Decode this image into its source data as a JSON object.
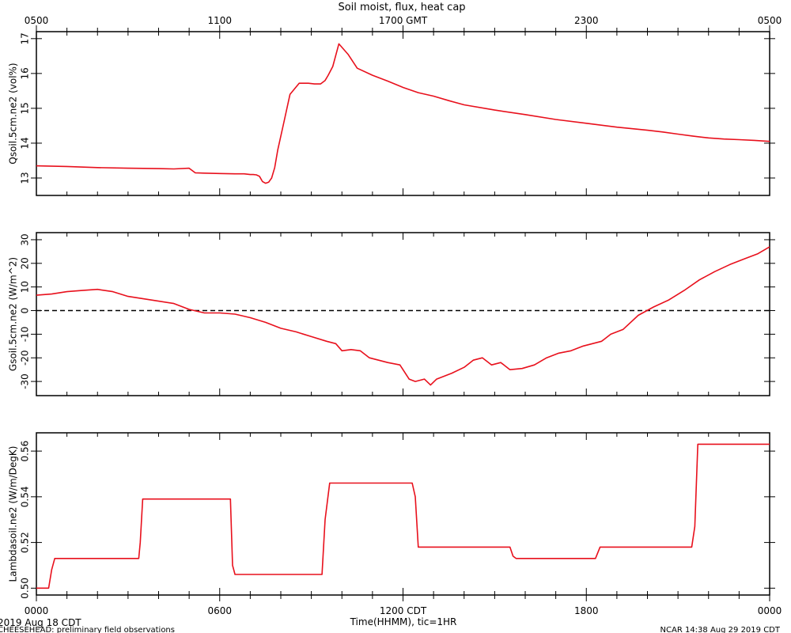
{
  "chart_data": [
    {
      "type": "line",
      "title": "Soil moist, flux, heat cap",
      "ylabel": "Qsoil.5cm.ne2 (vol%)",
      "ylim": [
        12.5,
        17.2
      ],
      "y_ticks": [
        "13",
        "14",
        "15",
        "16",
        "17"
      ],
      "top_x_ticks": [
        "0500",
        "1100",
        "1700 GMT",
        "2300",
        "0500"
      ],
      "series": [
        {
          "color": "#e8101c",
          "x": [
            0,
            1,
            2,
            3,
            4,
            4.5,
            5,
            5.2,
            5.5,
            6,
            6.5,
            6.8,
            7,
            7.1,
            7.2,
            7.3,
            7.4,
            7.5,
            7.6,
            7.7,
            7.8,
            7.9,
            8.1,
            8.3,
            8.6,
            8.9,
            9.1,
            9.3,
            9.45,
            9.55,
            9.7,
            9.9,
            10.2,
            10.5,
            11,
            11.5,
            12,
            12.5,
            13,
            13.5,
            14,
            15,
            16,
            17,
            18,
            19,
            20,
            20.5,
            21,
            21.5,
            22,
            22.5,
            23,
            23.5,
            24
          ],
          "y": [
            13.35,
            13.33,
            13.3,
            13.28,
            13.27,
            13.26,
            13.28,
            13.15,
            13.14,
            13.13,
            13.12,
            13.12,
            13.1,
            13.1,
            13.09,
            13.05,
            12.9,
            12.85,
            12.88,
            13.0,
            13.3,
            13.8,
            14.6,
            15.4,
            15.72,
            15.72,
            15.7,
            15.7,
            15.8,
            15.95,
            16.2,
            16.85,
            16.55,
            16.15,
            15.95,
            15.78,
            15.6,
            15.45,
            15.35,
            15.22,
            15.1,
            14.95,
            14.82,
            14.68,
            14.57,
            14.46,
            14.37,
            14.32,
            14.26,
            14.2,
            14.15,
            14.12,
            14.1,
            14.08,
            14.05
          ]
        }
      ]
    },
    {
      "type": "line",
      "ylabel": "Gsoil.5cm.ne2 (W/m^2)",
      "ylim": [
        -36,
        33
      ],
      "y_ticks": [
        "30",
        "20",
        "10",
        "0",
        "-10",
        "-20",
        "-30"
      ],
      "zero_line": true,
      "series": [
        {
          "color": "#e8101c",
          "x": [
            0,
            0.5,
            1,
            1.5,
            2,
            2.5,
            3,
            3.5,
            4,
            4.5,
            5,
            5.5,
            6,
            6.5,
            7,
            7.5,
            8,
            8.5,
            9,
            9.5,
            9.8,
            10,
            10.3,
            10.6,
            10.9,
            11.2,
            11.5,
            11.9,
            12.2,
            12.4,
            12.7,
            12.9,
            13.1,
            13.4,
            13.6,
            14,
            14.3,
            14.6,
            14.9,
            15.2,
            15.5,
            15.9,
            16.3,
            16.7,
            17.1,
            17.5,
            17.9,
            18.2,
            18.5,
            18.8,
            19.2,
            19.7,
            20.2,
            20.7,
            21.2,
            21.7,
            22.2,
            22.7,
            23.2,
            23.6,
            24
          ],
          "y": [
            6.5,
            7,
            8,
            8.5,
            9,
            8,
            6,
            5,
            4,
            3,
            0.5,
            -1,
            -1,
            -1.5,
            -3,
            -5,
            -7.5,
            -9,
            -11,
            -13,
            -14,
            -17,
            -16.5,
            -17,
            -20,
            -21,
            -22,
            -23,
            -29,
            -30,
            -29,
            -31.5,
            -29,
            -27.5,
            -26.5,
            -24,
            -21,
            -20,
            -23,
            -22,
            -25,
            -24.5,
            -23,
            -20,
            -18,
            -17,
            -15,
            -14,
            -13,
            -10,
            -8,
            -2,
            1.5,
            4.5,
            8.5,
            13,
            16.5,
            19.5,
            22,
            24,
            27
          ]
        }
      ]
    },
    {
      "type": "line",
      "ylabel": "Lambdasoil.ne2 (W/m/DegK)",
      "ylim": [
        0.497,
        0.568
      ],
      "y_ticks": [
        "0.50",
        "0.52",
        "0.54",
        "0.56"
      ],
      "xlabel": "Time(HHMM), tic=1HR",
      "x_ticks": [
        "0000",
        "0600",
        "1200 CDT",
        "1800",
        "0000"
      ],
      "series": [
        {
          "color": "#e8101c",
          "x": [
            0,
            0.4,
            0.5,
            0.6,
            3.35,
            3.4,
            3.48,
            6.35,
            6.42,
            6.5,
            9.35,
            9.45,
            9.6,
            12.3,
            12.4,
            12.5,
            15.5,
            15.6,
            15.7,
            18.3,
            18.45,
            21.45,
            21.55,
            21.65,
            24
          ],
          "y": [
            0.5,
            0.5,
            0.508,
            0.513,
            0.513,
            0.52,
            0.539,
            0.539,
            0.51,
            0.506,
            0.506,
            0.53,
            0.546,
            0.546,
            0.54,
            0.518,
            0.518,
            0.514,
            0.513,
            0.513,
            0.518,
            0.518,
            0.527,
            0.563,
            0.563
          ]
        }
      ]
    }
  ],
  "footer": {
    "date_left": "2019 Aug 18 CDT",
    "project_left": "CHEESEHEAD: preliminary field observations",
    "stamp_right": "NCAR 14:38 Aug 29 2019 CDT"
  }
}
